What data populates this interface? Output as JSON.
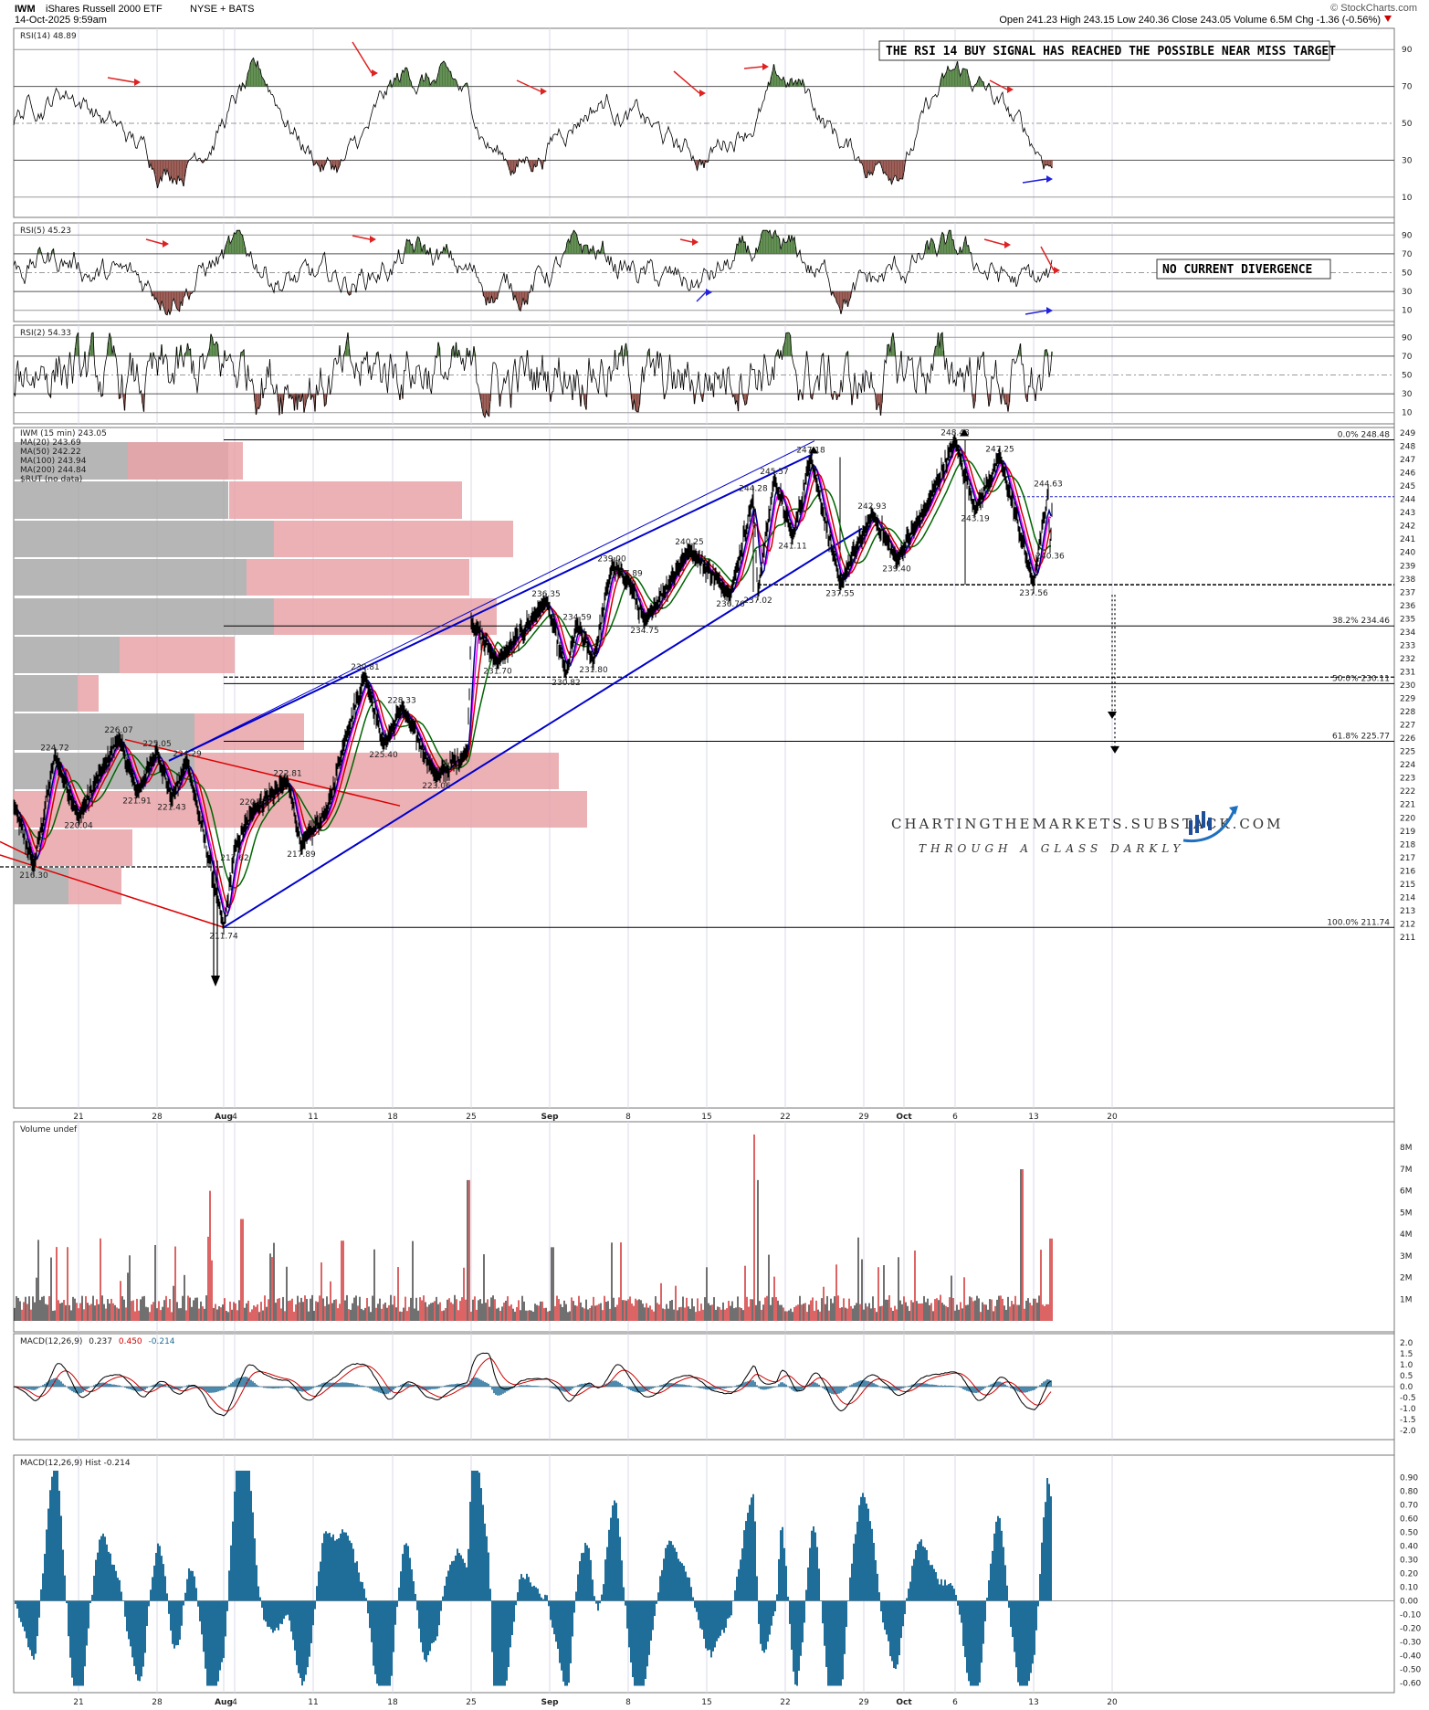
{
  "header": {
    "symbol": "IWM",
    "name": "iShares Russell 2000 ETF",
    "exchange": "NYSE + BATS",
    "timestamp": "14-Oct-2025 9:59am",
    "quote": "Open 241.23  High 243.15  Low 240.36  Close 243.05  Volume 6.5M  Chg -1.36 (-0.56%)",
    "chg_arrow": "down-triangle-icon",
    "copyright": "© StockCharts.com"
  },
  "colors": {
    "price_up": "#000000",
    "ma20": "#00008b",
    "ma50": "#cc0000",
    "ma100": "#006400",
    "ma200": "#ff00ff",
    "volume_by_price_up": "#e8a3a8",
    "volume_by_price_down": "#a9a9a9",
    "channel": "#0000cc",
    "trendline": "#dd0000",
    "macd_hist": "#1f6e9a",
    "overbought_fill": "#4f7f3f",
    "oversold_fill": "#8b4a42"
  },
  "panels": {
    "rsi14": {
      "label": "RSI(14) 48.89",
      "levels": [
        "90",
        "70",
        "50",
        "30",
        "10"
      ],
      "annotation": "THE RSI 14 BUY SIGNAL HAS REACHED THE POSSIBLE NEAR MISS TARGET"
    },
    "rsi5": {
      "label": "RSI(5) 45.23",
      "levels": [
        "90",
        "70",
        "50",
        "30",
        "10"
      ],
      "annotation": "NO CURRENT DIVERGENCE"
    },
    "rsi2": {
      "label": "RSI(2) 54.33",
      "levels": [
        "90",
        "70",
        "50",
        "30",
        "10"
      ]
    },
    "price": {
      "legend": [
        {
          "text": "IWM (15 min) 243.05",
          "color": "#000000"
        },
        {
          "text": "MA(20) 243.69",
          "color": "#00008b"
        },
        {
          "text": "MA(50) 242.22",
          "color": "#cc0000"
        },
        {
          "text": "MA(100) 243.94",
          "color": "#006400"
        },
        {
          "text": "MA(200) 244.84",
          "color": "#ff00ff"
        },
        {
          "text": "$RUT (no data)",
          "color": "#006400"
        }
      ],
      "fib_labels": [
        "0.0% 248.48",
        "38.2% 234.46",
        "50.0% 230.11",
        "61.8% 225.77",
        "100.0% 211.74"
      ],
      "watermark_line1": "CHARTINGTHEMARKETS.SUBSTACK.COM",
      "watermark_line2": "THROUGH A GLASS DARKLY"
    },
    "volume": {
      "label": "Volume undef",
      "levels": [
        "8M",
        "7M",
        "6M",
        "5M",
        "4M",
        "3M",
        "2M",
        "1M"
      ]
    },
    "macd": {
      "label_prefix": "MACD(12,26,9)",
      "v1": "0.237",
      "v2": "0.450",
      "v3": "-0.214",
      "levels": [
        "2.0",
        "1.5",
        "1.0",
        "0.5",
        "0.0",
        "-0.5",
        "-1.0",
        "-1.5",
        "-2.0"
      ]
    },
    "hist": {
      "label": "MACD(12,26,9) Hist -0.214",
      "levels": [
        "0.90",
        "0.80",
        "0.70",
        "0.60",
        "0.50",
        "0.40",
        "0.30",
        "0.20",
        "0.10",
        "0.00",
        "-0.10",
        "-0.20",
        "-0.30",
        "-0.40",
        "-0.50",
        "-0.60"
      ]
    }
  },
  "x_axis_labels": [
    "21",
    "28",
    "Aug",
    "4",
    "11",
    "18",
    "25",
    "Sep",
    "8",
    "15",
    "22",
    "29",
    "Oct",
    "6",
    "13",
    "20"
  ],
  "chart_data": {
    "type": "line",
    "title": "IWM (15 min) 243.05",
    "ylim": [
      211,
      249
    ],
    "price_ticks": [
      "249",
      "248",
      "247",
      "246",
      "245",
      "244",
      "243",
      "242",
      "241",
      "240",
      "239",
      "238",
      "237",
      "236",
      "235",
      "234",
      "233",
      "232",
      "231",
      "230",
      "229",
      "228",
      "227",
      "226",
      "225",
      "224",
      "223",
      "222",
      "221",
      "220",
      "219",
      "218",
      "217",
      "216",
      "215",
      "214",
      "213",
      "212",
      "211"
    ],
    "series": [
      {
        "name": "IWM (15 min)",
        "points": [
          {
            "x": "Jul 16",
            "y": 221.0
          },
          {
            "x": "Jul 17",
            "y": 216.3
          },
          {
            "x": "Jul 18",
            "y": 224.72
          },
          {
            "x": "Jul 21",
            "y": 220.04
          },
          {
            "x": "Jul 23",
            "y": 224.0
          },
          {
            "x": "Jul 24",
            "y": 226.07
          },
          {
            "x": "Jul 25",
            "y": 221.91
          },
          {
            "x": "Jul 28",
            "y": 225.05
          },
          {
            "x": "Jul 29",
            "y": 221.43
          },
          {
            "x": "Jul 30",
            "y": 224.29
          },
          {
            "x": "Aug 1",
            "y": 211.74
          },
          {
            "x": "Aug 4",
            "y": 217.62
          },
          {
            "x": "Aug 5",
            "y": 220.63
          },
          {
            "x": "Aug 7",
            "y": 222.81
          },
          {
            "x": "Aug 8",
            "y": 217.89
          },
          {
            "x": "Aug 12",
            "y": 220.5
          },
          {
            "x": "Aug 13",
            "y": 226.0
          },
          {
            "x": "Aug 14",
            "y": 230.81
          },
          {
            "x": "Aug 15",
            "y": 225.4
          },
          {
            "x": "Aug 18",
            "y": 228.33
          },
          {
            "x": "Aug 20",
            "y": 223.06
          },
          {
            "x": "Aug 22",
            "y": 225.0
          },
          {
            "x": "Aug 22b",
            "y": 234.8
          },
          {
            "x": "Aug 26",
            "y": 231.7
          },
          {
            "x": "Aug 28",
            "y": 236.35
          },
          {
            "x": "Sep 1",
            "y": 230.82
          },
          {
            "x": "Sep 2",
            "y": 234.59
          },
          {
            "x": "Sep 3",
            "y": 231.8
          },
          {
            "x": "Sep 5",
            "y": 239.0
          },
          {
            "x": "Sep 8",
            "y": 237.89
          },
          {
            "x": "Sep 9",
            "y": 234.75
          },
          {
            "x": "Sep 12",
            "y": 240.25
          },
          {
            "x": "Sep 16",
            "y": 236.76
          },
          {
            "x": "Sep 18",
            "y": 244.28
          },
          {
            "x": "Sep 18b",
            "y": 237.02
          },
          {
            "x": "Sep 19",
            "y": 245.57
          },
          {
            "x": "Sep 22",
            "y": 241.11
          },
          {
            "x": "Sep 23",
            "y": 247.18
          },
          {
            "x": "Sep 25",
            "y": 237.55
          },
          {
            "x": "Sep 26",
            "y": 242.93
          },
          {
            "x": "Sep 30",
            "y": 239.4
          },
          {
            "x": "Oct 3",
            "y": 243.5
          },
          {
            "x": "Oct 6",
            "y": 248.48
          },
          {
            "x": "Oct 7",
            "y": 243.19
          },
          {
            "x": "Oct 8",
            "y": 247.25
          },
          {
            "x": "Oct 10",
            "y": 237.56
          },
          {
            "x": "Oct 13",
            "y": 244.63
          },
          {
            "x": "Oct 14",
            "y": 240.36
          },
          {
            "x": "Oct 14b",
            "y": 243.05
          }
        ]
      }
    ],
    "point_labels": [
      "216.30",
      "224.72",
      "220.04",
      "226.07",
      "221.91",
      "225.05",
      "221.43",
      "224.29",
      "211.74",
      "217.62",
      "220.63",
      "222.81",
      "217.89",
      "230.81",
      "225.40",
      "228.33",
      "223.06",
      "231.70",
      "236.35",
      "230.82",
      "234.59",
      "231.80",
      "239.00",
      "237.89",
      "234.75",
      "240.25",
      "236.76",
      "244.28",
      "237.02",
      "245.57",
      "241.11",
      "247.18",
      "237.55",
      "242.93",
      "239.40",
      "248.48",
      "243.19",
      "247.25",
      "237.56",
      "244.63",
      "240.36"
    ],
    "fib_levels": [
      248.48,
      234.46,
      230.11,
      225.77,
      211.74
    ]
  }
}
